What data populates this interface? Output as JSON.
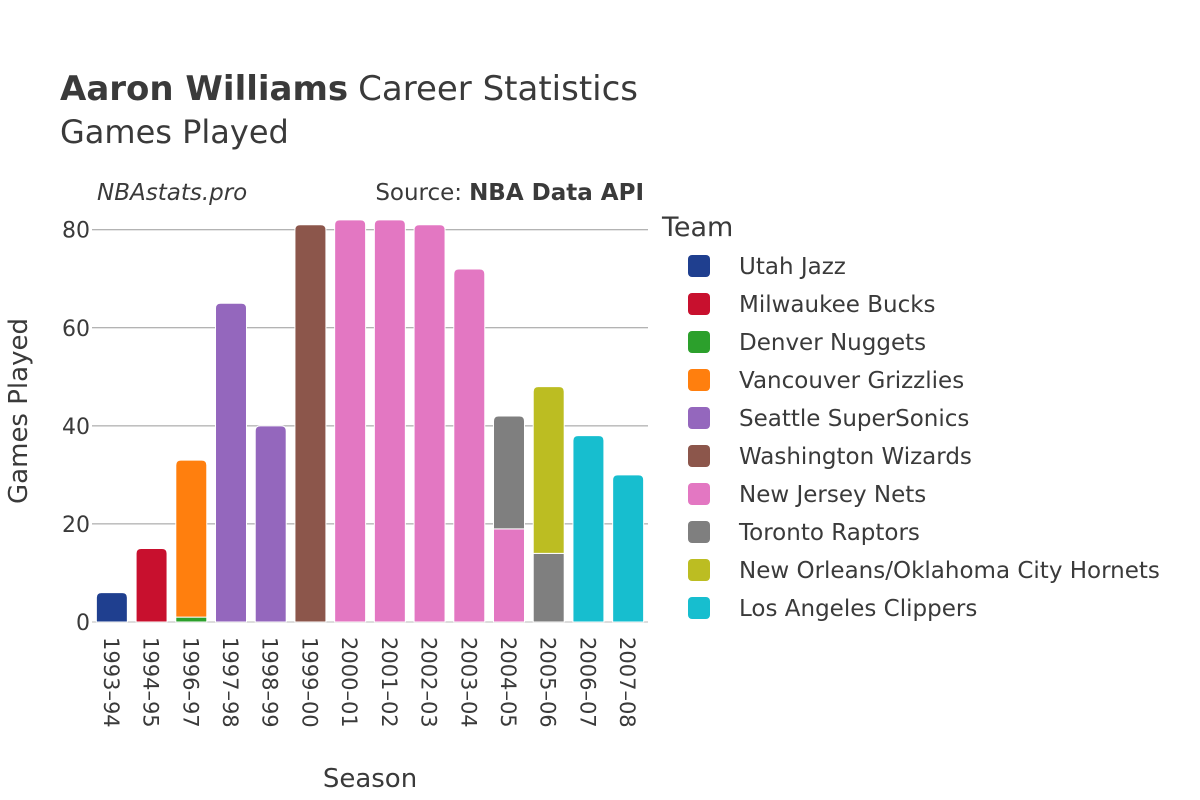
{
  "chart_data": {
    "type": "bar",
    "stacked": true,
    "title_bold": "Aaron Williams",
    "title_rest": "Career Statistics",
    "subtitle": "Games Played",
    "watermark": "NBAstats.pro",
    "source_label": "Source:",
    "source_name": "NBA Data API",
    "xlabel": "Season",
    "ylabel": "Games Played",
    "ylim": [
      0,
      83
    ],
    "yticks": [
      0,
      20,
      40,
      60,
      80
    ],
    "categories": [
      "1993–94",
      "1994–95",
      "1996–97",
      "1997–98",
      "1998–99",
      "1999–00",
      "2000–01",
      "2001–02",
      "2002–03",
      "2003–04",
      "2004–05",
      "2005–06",
      "2006–07",
      "2007–08"
    ],
    "legend_title": "Team",
    "series": [
      {
        "name": "Utah Jazz",
        "color": "#1f3f8f",
        "values": [
          6,
          0,
          0,
          0,
          0,
          0,
          0,
          0,
          0,
          0,
          0,
          0,
          0,
          0
        ]
      },
      {
        "name": "Milwaukee Bucks",
        "color": "#c8102e",
        "values": [
          0,
          15,
          0,
          0,
          0,
          0,
          0,
          0,
          0,
          0,
          0,
          0,
          0,
          0
        ]
      },
      {
        "name": "Denver Nuggets",
        "color": "#2ca02c",
        "values": [
          0,
          0,
          1,
          0,
          0,
          0,
          0,
          0,
          0,
          0,
          0,
          0,
          0,
          0
        ]
      },
      {
        "name": "Vancouver Grizzlies",
        "color": "#ff7f0e",
        "values": [
          0,
          0,
          32,
          0,
          0,
          0,
          0,
          0,
          0,
          0,
          0,
          0,
          0,
          0
        ]
      },
      {
        "name": "Seattle SuperSonics",
        "color": "#9467bd",
        "values": [
          0,
          0,
          0,
          65,
          40,
          0,
          0,
          0,
          0,
          0,
          0,
          0,
          0,
          0
        ]
      },
      {
        "name": "Washington Wizards",
        "color": "#8c564b",
        "values": [
          0,
          0,
          0,
          0,
          0,
          81,
          0,
          0,
          0,
          0,
          0,
          0,
          0,
          0
        ]
      },
      {
        "name": "New Jersey Nets",
        "color": "#e377c2",
        "values": [
          0,
          0,
          0,
          0,
          0,
          0,
          82,
          82,
          81,
          72,
          19,
          0,
          0,
          0
        ]
      },
      {
        "name": "Toronto Raptors",
        "color": "#7f7f7f",
        "values": [
          0,
          0,
          0,
          0,
          0,
          0,
          0,
          0,
          0,
          0,
          23,
          14,
          0,
          0
        ]
      },
      {
        "name": "New Orleans/Oklahoma City Hornets",
        "color": "#bcbd22",
        "values": [
          0,
          0,
          0,
          0,
          0,
          0,
          0,
          0,
          0,
          0,
          0,
          34,
          0,
          0
        ]
      },
      {
        "name": "Los Angeles Clippers",
        "color": "#17becf",
        "values": [
          0,
          0,
          0,
          0,
          0,
          0,
          0,
          0,
          0,
          0,
          0,
          0,
          38,
          30
        ]
      }
    ],
    "stack_order": [
      [
        0
      ],
      [
        1
      ],
      [
        2,
        3
      ],
      [
        4
      ],
      [
        4
      ],
      [
        5
      ],
      [
        6
      ],
      [
        6
      ],
      [
        6
      ],
      [
        6
      ],
      [
        6,
        7
      ],
      [
        7,
        8
      ],
      [
        9
      ],
      [
        9
      ]
    ]
  }
}
